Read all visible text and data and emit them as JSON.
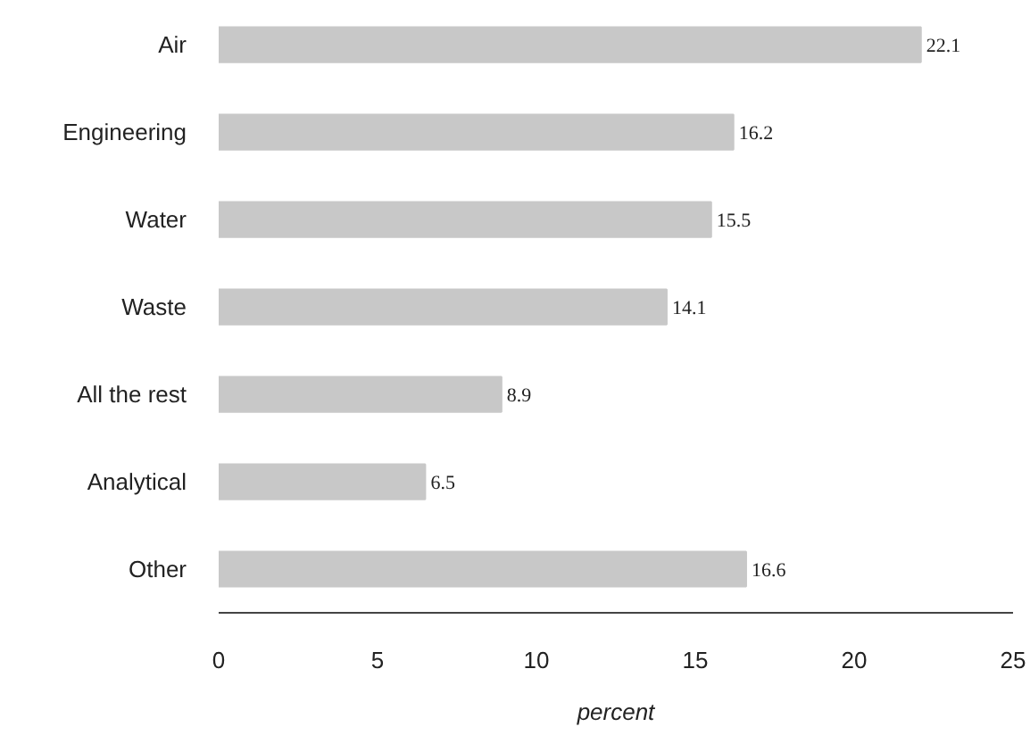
{
  "chart_data": {
    "type": "bar",
    "orientation": "horizontal",
    "xlabel": "percent",
    "categories": [
      "Air",
      "Engineering",
      "Water",
      "Waste",
      "All the rest",
      "Analytical",
      "Other"
    ],
    "values": [
      22.1,
      16.2,
      15.5,
      14.1,
      8.9,
      6.5,
      16.6
    ],
    "color": "#c8c8c8",
    "xlim": [
      0,
      25
    ],
    "xticks": [
      0,
      5,
      10,
      15,
      20,
      25
    ],
    "data_labels": true
  }
}
